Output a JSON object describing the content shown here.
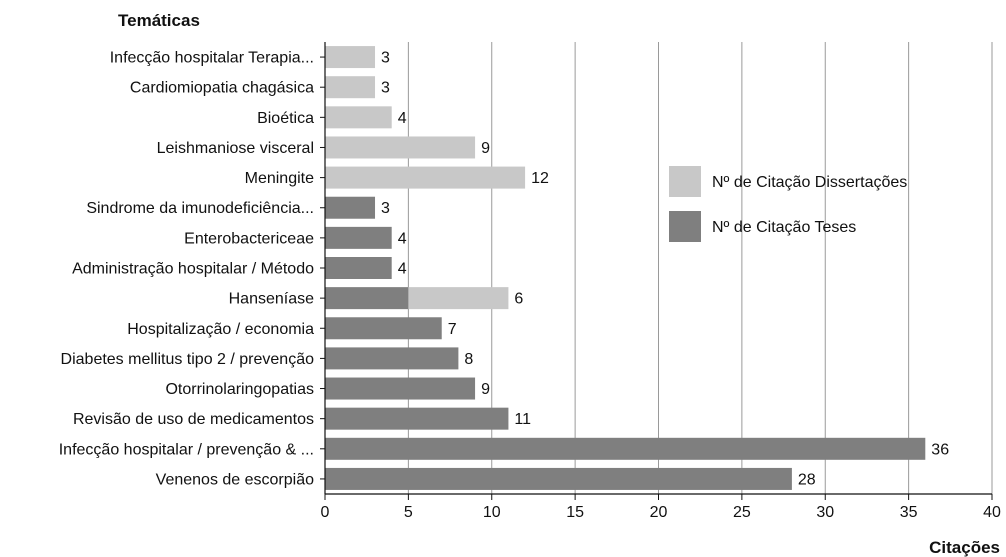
{
  "chart_data": {
    "type": "bar",
    "orientation": "horizontal",
    "stacked": true,
    "title": "",
    "ylabel": "Temáticas",
    "xlabel": "Citações",
    "xlim": [
      0,
      40
    ],
    "xticks": [
      0,
      5,
      10,
      15,
      20,
      25,
      30,
      35,
      40
    ],
    "grid": "vertical",
    "legend_position": "right",
    "categories": [
      "Infecção hospitalar Terapia...",
      "Cardiomiopatia chagásica",
      "Bioética",
      "Leishmaniose visceral",
      "Meningite",
      "Sindrome da imunodeficiência...",
      "Enterobactericeae",
      "Administração hospitalar / Método",
      "Hanseníase",
      "Hospitalização / economia",
      "Diabetes mellitus tipo 2 / prevenção",
      "Otorrinolaringopatias",
      "Revisão de uso de medicamentos",
      "Infecção hospitalar / prevenção & ...",
      "Venenos de escorpião"
    ],
    "series": [
      {
        "name": "Nº de Citação Teses",
        "color": "#7f7f7f",
        "values": [
          0,
          0,
          0,
          0,
          0,
          3,
          4,
          4,
          5,
          7,
          8,
          9,
          11,
          36,
          28
        ]
      },
      {
        "name": "Nº de Citação Dissertações",
        "color": "#c8c8c8",
        "values": [
          3,
          3,
          4,
          9,
          12,
          0,
          0,
          0,
          6,
          0,
          0,
          0,
          0,
          0,
          0
        ]
      }
    ],
    "legend": [
      {
        "name": "Nº de Citação Dissertações",
        "color": "#c8c8c8"
      },
      {
        "name": "Nº de Citação Teses",
        "color": "#7f7f7f"
      }
    ]
  }
}
